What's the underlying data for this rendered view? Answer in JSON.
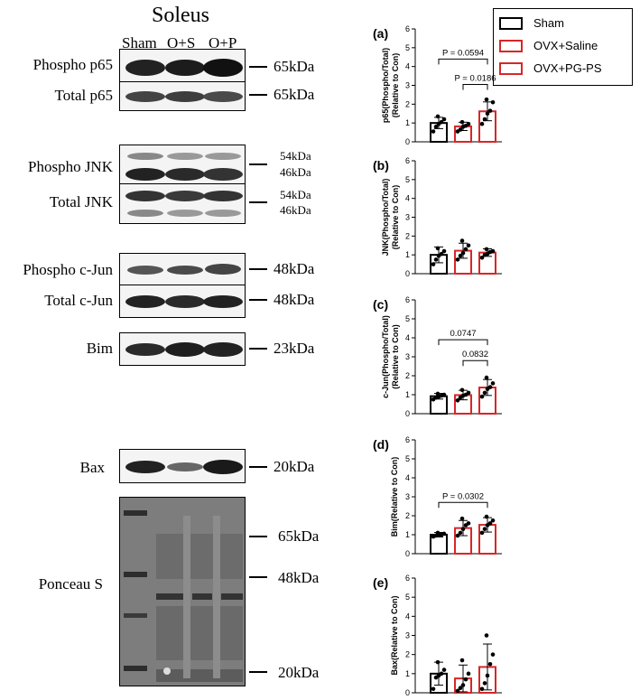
{
  "blot": {
    "title": "Soleus",
    "lanes": [
      "Sham",
      "O+S",
      "O+P"
    ],
    "rows": [
      {
        "label": "Phospho p65",
        "kda": [
          "65kDa"
        ]
      },
      {
        "label": "Total p65",
        "kda": [
          "65kDa"
        ]
      },
      {
        "label": "Phospho JNK",
        "kda": [
          "54kDa",
          "46kDa"
        ]
      },
      {
        "label": "Total JNK",
        "kda": [
          "54kDa",
          "46kDa"
        ]
      },
      {
        "label": "Phospho c-Jun",
        "kda": [
          "48kDa"
        ]
      },
      {
        "label": "Total c-Jun",
        "kda": [
          "48kDa"
        ]
      },
      {
        "label": "Bim",
        "kda": [
          "23kDa"
        ]
      },
      {
        "label": "Bax",
        "kda": [
          "20kDa"
        ]
      },
      {
        "label": "Ponceau S",
        "kda": [
          "65kDa",
          "48kDa",
          "20kDa"
        ]
      }
    ]
  },
  "legend": {
    "items": [
      {
        "label": "Sham",
        "color": "#000000"
      },
      {
        "label": "OVX+Saline",
        "color": "#d62728"
      },
      {
        "label": "OVX+PG-PS",
        "color": "#d62728"
      }
    ]
  },
  "chart_data": [
    {
      "type": "bar",
      "panel": "(a)",
      "ylabel": "p65(Phospho/Total)\n(Relative to Con)",
      "categories": [
        "Sham",
        "OVX+Saline",
        "OVX+PG-PS"
      ],
      "values": [
        1.0,
        0.82,
        1.62
      ],
      "errors": [
        0.3,
        0.22,
        0.5
      ],
      "points": [
        [
          0.55,
          0.8,
          0.95,
          1.05,
          1.2,
          1.35
        ],
        [
          0.55,
          0.65,
          0.8,
          0.85,
          0.95,
          1.05
        ],
        [
          0.95,
          1.2,
          1.5,
          1.65,
          2.1,
          2.25
        ]
      ],
      "ylim": [
        0,
        6
      ],
      "annotations": [
        {
          "text": "P = 0.0594",
          "from": 0,
          "to": 2,
          "y": 4.4
        },
        {
          "text": "P = 0.0186",
          "from": 1,
          "to": 2,
          "y": 3.05
        }
      ]
    },
    {
      "type": "bar",
      "panel": "(b)",
      "ylabel": "JNK(Phospho/Total)\n(Relative to Con)",
      "categories": [
        "Sham",
        "OVX+Saline",
        "OVX+PG-PS"
      ],
      "values": [
        1.0,
        1.22,
        1.12
      ],
      "errors": [
        0.42,
        0.4,
        0.2
      ],
      "points": [
        [
          0.5,
          0.75,
          0.95,
          1.05,
          1.2,
          1.35
        ],
        [
          0.75,
          0.95,
          1.1,
          1.3,
          1.5,
          1.75
        ],
        [
          0.85,
          1.0,
          1.05,
          1.15,
          1.2,
          1.3
        ]
      ],
      "ylim": [
        0,
        6
      ],
      "annotations": []
    },
    {
      "type": "bar",
      "panel": "(c)",
      "ylabel": "c-Jun(Phospho/Total)\n(Relative to Con)",
      "categories": [
        "Sham",
        "OVX+Saline",
        "OVX+PG-PS"
      ],
      "values": [
        0.92,
        0.98,
        1.38
      ],
      "errors": [
        0.15,
        0.25,
        0.42
      ],
      "points": [
        [
          0.75,
          0.85,
          0.9,
          0.95,
          1.0,
          1.05
        ],
        [
          0.7,
          0.85,
          0.95,
          1.0,
          1.1,
          1.25
        ],
        [
          0.9,
          1.1,
          1.3,
          1.4,
          1.6,
          1.9
        ]
      ],
      "ylim": [
        0,
        6
      ],
      "annotations": [
        {
          "text": "0.0747",
          "from": 0,
          "to": 2,
          "y": 3.9
        },
        {
          "text": "0.0832",
          "from": 1,
          "to": 2,
          "y": 2.8
        }
      ]
    },
    {
      "type": "bar",
      "panel": "(d)",
      "ylabel": "Bim(Relative to Con)",
      "categories": [
        "Sham",
        "OVX+Saline",
        "OVX+PG-PS"
      ],
      "values": [
        1.0,
        1.35,
        1.52
      ],
      "errors": [
        0.12,
        0.4,
        0.38
      ],
      "points": [
        [
          0.9,
          0.95,
          1.0,
          1.0,
          1.05,
          1.1
        ],
        [
          0.95,
          1.1,
          1.3,
          1.5,
          1.6,
          1.85
        ],
        [
          1.1,
          1.3,
          1.5,
          1.6,
          1.75,
          1.95
        ]
      ],
      "ylim": [
        0,
        6
      ],
      "annotations": [
        {
          "text": "P = 0.0302",
          "from": 0,
          "to": 2,
          "y": 2.7
        }
      ]
    },
    {
      "type": "bar",
      "panel": "(e)",
      "ylabel": "Bax(Relative to Con)",
      "categories": [
        "Sham",
        "OVX+Saline",
        "OVX+PG-PS"
      ],
      "values": [
        1.0,
        0.75,
        1.35
      ],
      "errors": [
        0.6,
        0.7,
        1.2
      ],
      "points": [
        [
          0.2,
          0.8,
          0.9,
          1.0,
          1.2,
          1.6
        ],
        [
          0.1,
          0.25,
          0.4,
          0.7,
          1.0,
          1.7
        ],
        [
          0.2,
          0.5,
          0.9,
          1.5,
          2.0,
          3.0
        ]
      ],
      "ylim": [
        0,
        6
      ],
      "annotations": []
    }
  ]
}
